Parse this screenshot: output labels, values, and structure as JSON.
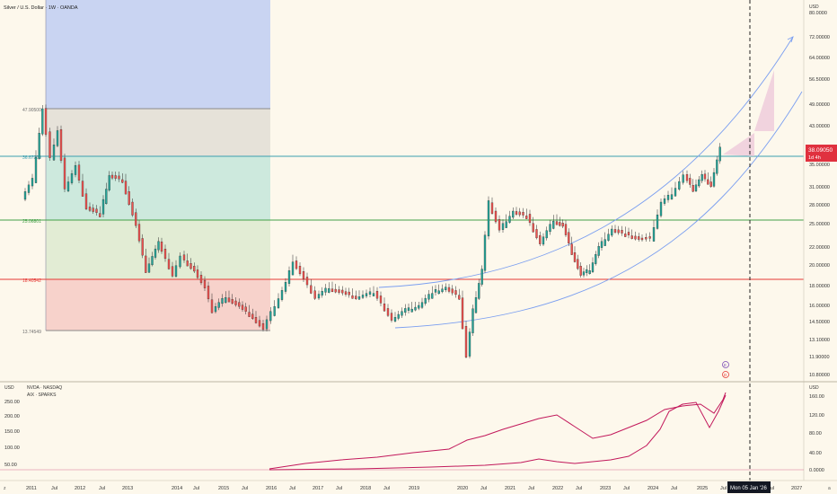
{
  "main_pane": {
    "title": "Silver / U.S. Dollar · 1W · OANDA",
    "currency": "USD",
    "price_ticks": [
      "80.0000",
      "72.00000",
      "64.00000",
      "56.50000",
      "49.00000",
      "43.00000",
      "38.00000",
      "35.00000",
      "31.00000",
      "28.00000",
      "25.00000",
      "22.00000",
      "20.00000",
      "18.00000",
      "16.00000",
      "14.50000",
      "13.10000",
      "11.90000",
      "10.80000"
    ],
    "last_price": "38.09050",
    "countdown": "1d 4h",
    "accent_color": "#e0313f"
  },
  "fib_levels": [
    {
      "label": "47.90500",
      "color": "#6e6e6e"
    },
    {
      "label": "36.67200",
      "color": "#3a9fb0"
    },
    {
      "label": "25.06801",
      "color": "#43a047"
    },
    {
      "label": "18.40542",
      "color": "#e53935"
    },
    {
      "label": "13.74549",
      "color": "#6e6e6e"
    }
  ],
  "lower_pane": {
    "left_currency": "USD",
    "right_currency": "USD",
    "legend": [
      "NVDA · NASDAQ",
      "AIX · SPARKS"
    ],
    "left_ticks": [
      "250.00",
      "200.00",
      "150.00",
      "100.00",
      "50.00"
    ],
    "right_ticks": [
      "160.00",
      "120.00",
      "80.00",
      "40.00",
      "0.0000"
    ],
    "series_color": "#c2185b"
  },
  "time_axis": {
    "labels": [
      "2011",
      "Jul",
      "2012",
      "Jul",
      "2013",
      "2014",
      "Jul",
      "2015",
      "Jul",
      "2016",
      "Jul",
      "2017",
      "Jul",
      "2018",
      "Jul",
      "2019",
      "2020",
      "Jul",
      "2021",
      "Jul",
      "2022",
      "Jul",
      "2023",
      "Jul",
      "2024",
      "Jul",
      "2025",
      "Jul",
      "Jul",
      "2027"
    ],
    "cursor_label": "Mon 05 Jan '26"
  },
  "events": {
    "flag": "E",
    "earnings": "D"
  }
}
